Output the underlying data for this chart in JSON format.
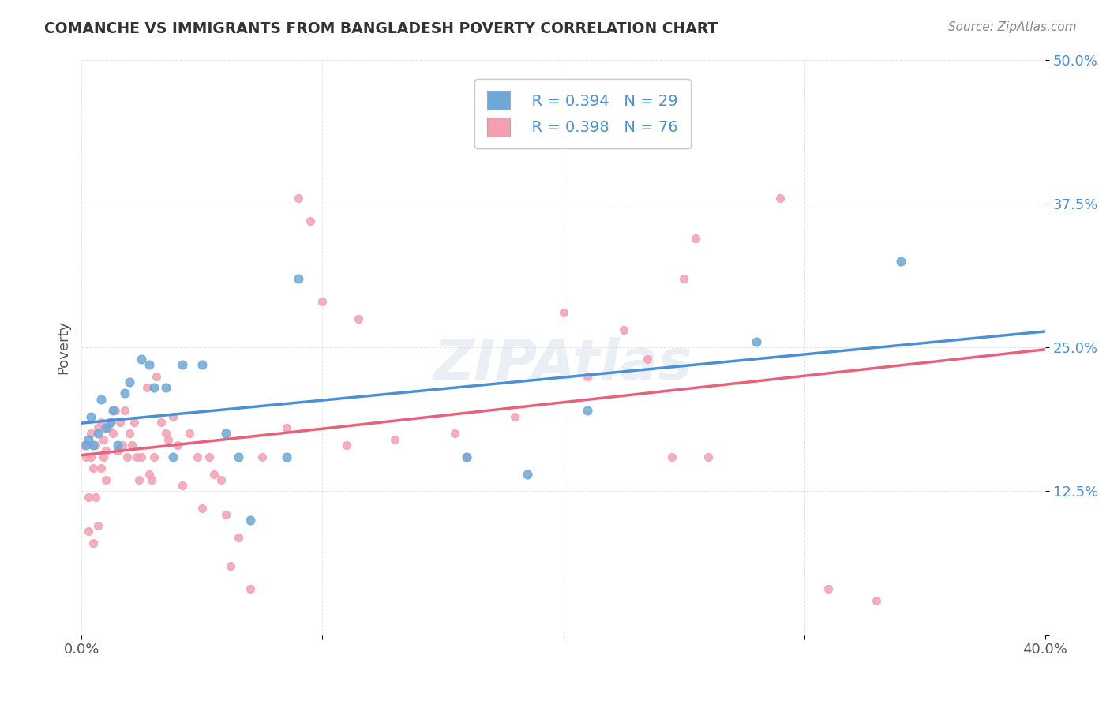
{
  "title": "COMANCHE VS IMMIGRANTS FROM BANGLADESH POVERTY CORRELATION CHART",
  "source": "Source: ZipAtlas.com",
  "xlabel_bottom": "",
  "ylabel": "Poverty",
  "xlim": [
    0.0,
    0.4
  ],
  "ylim": [
    0.0,
    0.5
  ],
  "xticks": [
    0.0,
    0.1,
    0.2,
    0.3,
    0.4
  ],
  "yticks": [
    0.0,
    0.125,
    0.25,
    0.375,
    0.5
  ],
  "xticklabels": [
    "0.0%",
    "",
    "",
    "",
    "40.0%"
  ],
  "yticklabels": [
    "",
    "12.5%",
    "25.0%",
    "37.5%",
    "50.0%"
  ],
  "blue_color": "#6ea8d8",
  "pink_color": "#f4a0b0",
  "blue_line_color": "#4a90d9",
  "pink_line_color": "#e8607a",
  "dashed_line_color": "#c8c8c8",
  "legend_R1": "R = 0.394",
  "legend_N1": "N = 29",
  "legend_R2": "R = 0.398",
  "legend_N2": "N = 76",
  "watermark": "ZIPAtlas",
  "blue_points_x": [
    0.002,
    0.003,
    0.004,
    0.005,
    0.007,
    0.008,
    0.01,
    0.012,
    0.013,
    0.015,
    0.018,
    0.02,
    0.025,
    0.028,
    0.03,
    0.035,
    0.038,
    0.042,
    0.05,
    0.06,
    0.065,
    0.07,
    0.085,
    0.09,
    0.16,
    0.185,
    0.21,
    0.28,
    0.34
  ],
  "blue_points_y": [
    0.165,
    0.17,
    0.19,
    0.165,
    0.175,
    0.205,
    0.18,
    0.185,
    0.195,
    0.165,
    0.21,
    0.22,
    0.24,
    0.235,
    0.215,
    0.215,
    0.155,
    0.235,
    0.235,
    0.175,
    0.155,
    0.1,
    0.155,
    0.31,
    0.155,
    0.14,
    0.195,
    0.255,
    0.325
  ],
  "pink_points_x": [
    0.001,
    0.002,
    0.003,
    0.003,
    0.004,
    0.004,
    0.005,
    0.005,
    0.006,
    0.006,
    0.007,
    0.007,
    0.008,
    0.008,
    0.009,
    0.009,
    0.01,
    0.01,
    0.011,
    0.012,
    0.013,
    0.014,
    0.015,
    0.016,
    0.017,
    0.018,
    0.019,
    0.02,
    0.021,
    0.022,
    0.023,
    0.024,
    0.025,
    0.027,
    0.028,
    0.029,
    0.03,
    0.031,
    0.033,
    0.035,
    0.036,
    0.038,
    0.04,
    0.042,
    0.045,
    0.048,
    0.05,
    0.053,
    0.055,
    0.058,
    0.06,
    0.062,
    0.065,
    0.07,
    0.075,
    0.085,
    0.09,
    0.095,
    0.1,
    0.11,
    0.115,
    0.13,
    0.155,
    0.16,
    0.18,
    0.2,
    0.21,
    0.225,
    0.235,
    0.245,
    0.25,
    0.255,
    0.26,
    0.29,
    0.31,
    0.33
  ],
  "pink_points_y": [
    0.165,
    0.155,
    0.12,
    0.09,
    0.175,
    0.155,
    0.145,
    0.08,
    0.165,
    0.12,
    0.18,
    0.095,
    0.185,
    0.145,
    0.17,
    0.155,
    0.16,
    0.135,
    0.18,
    0.185,
    0.175,
    0.195,
    0.16,
    0.185,
    0.165,
    0.195,
    0.155,
    0.175,
    0.165,
    0.185,
    0.155,
    0.135,
    0.155,
    0.215,
    0.14,
    0.135,
    0.155,
    0.225,
    0.185,
    0.175,
    0.17,
    0.19,
    0.165,
    0.13,
    0.175,
    0.155,
    0.11,
    0.155,
    0.14,
    0.135,
    0.105,
    0.06,
    0.085,
    0.04,
    0.155,
    0.18,
    0.38,
    0.36,
    0.29,
    0.165,
    0.275,
    0.17,
    0.175,
    0.155,
    0.19,
    0.28,
    0.225,
    0.265,
    0.24,
    0.155,
    0.31,
    0.345,
    0.155,
    0.38,
    0.04,
    0.03
  ]
}
